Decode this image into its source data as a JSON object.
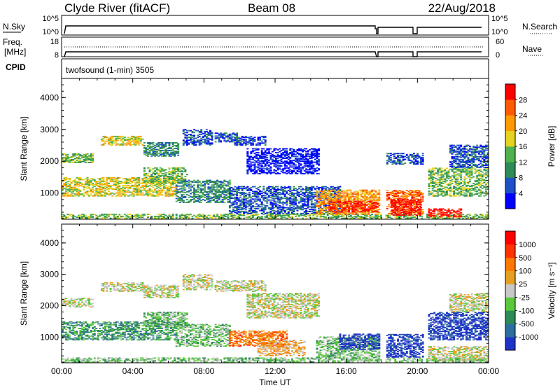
{
  "header": {
    "station": "Clyde River (fitACF)",
    "beam": "Beam 08",
    "date": "22/Aug/2018"
  },
  "top_panels": {
    "nsky_label": "N.Sky",
    "nsky_ticks": [
      "10^5",
      "10^0"
    ],
    "nsearch_label": "N.Search",
    "nsearch_ticks": [
      "10^5",
      "10^0"
    ],
    "freq_label_1": "Freq.",
    "freq_label_2": "[MHz]",
    "freq_ticks": [
      "18",
      "8"
    ],
    "nave_label": "Nave",
    "nave_ticks": [
      "60",
      "0"
    ],
    "cpid_label": "CPID",
    "cpid_text": "twofsound (1-min) 3505"
  },
  "chart_data": [
    {
      "type": "heatmap",
      "name": "power",
      "xlabel": "",
      "ylabel": "Slant Range [km]",
      "x_ticks": [
        "00:00",
        "04:00",
        "08:00",
        "12:00",
        "16:00",
        "20:00",
        "00:00"
      ],
      "y_ticks": [
        1000,
        2000,
        3000,
        4000
      ],
      "xlim_hours": [
        0,
        24
      ],
      "ylim_km": [
        180,
        4600
      ],
      "data_gaps_hours": [
        [
          17.9,
          18.15
        ],
        [
          20.3,
          20.5
        ]
      ],
      "colorbar": {
        "label": "Power [dB]",
        "ticks": [
          "4",
          "8",
          "12",
          "16",
          "20",
          "24",
          "28"
        ],
        "colors": [
          "#0000ff",
          "#1e50c8",
          "#2e8b57",
          "#4fb24f",
          "#e6d220",
          "#ff9b00",
          "#ff5a00",
          "#ff0000"
        ]
      },
      "regions": [
        {
          "t": [
            0.0,
            24.0
          ],
          "r": [
            200,
            330
          ],
          "level": 3
        },
        {
          "t": [
            0.0,
            1.8
          ],
          "r": [
            1950,
            2250
          ],
          "level": 3
        },
        {
          "t": [
            2.2,
            4.6
          ],
          "r": [
            2500,
            2800
          ],
          "level": 4
        },
        {
          "t": [
            4.6,
            6.5
          ],
          "r": [
            2150,
            2600
          ],
          "level": 2
        },
        {
          "t": [
            6.8,
            8.4
          ],
          "r": [
            2500,
            3000
          ],
          "level": 1
        },
        {
          "t": [
            8.6,
            9.8
          ],
          "r": [
            2600,
            2900
          ],
          "level": 1
        },
        {
          "t": [
            9.7,
            11.4
          ],
          "r": [
            2500,
            2800
          ],
          "level": 1
        },
        {
          "t": [
            0.0,
            6.4
          ],
          "r": [
            900,
            1500
          ],
          "level": 4
        },
        {
          "t": [
            4.6,
            7.0
          ],
          "r": [
            1300,
            1800
          ],
          "level": 3
        },
        {
          "t": [
            6.4,
            9.4
          ],
          "r": [
            700,
            1400
          ],
          "level": 2
        },
        {
          "t": [
            9.4,
            15.6
          ],
          "r": [
            350,
            1200
          ],
          "level": 1
        },
        {
          "t": [
            10.4,
            14.4
          ],
          "r": [
            1600,
            2400
          ],
          "level": 0
        },
        {
          "t": [
            14.3,
            17.9
          ],
          "r": [
            330,
            1100
          ],
          "level": 5
        },
        {
          "t": [
            15.0,
            17.8
          ],
          "r": [
            400,
            750
          ],
          "level": 7
        },
        {
          "t": [
            18.15,
            20.3
          ],
          "r": [
            350,
            1100
          ],
          "level": 6
        },
        {
          "t": [
            18.5,
            20.2
          ],
          "r": [
            300,
            800
          ],
          "level": 7
        },
        {
          "t": [
            18.15,
            20.3
          ],
          "r": [
            1900,
            2250
          ],
          "level": 1
        },
        {
          "t": [
            20.5,
            24.0
          ],
          "r": [
            900,
            1800
          ],
          "level": 3
        },
        {
          "t": [
            20.5,
            22.5
          ],
          "r": [
            250,
            500
          ],
          "level": 7
        },
        {
          "t": [
            21.8,
            24.0
          ],
          "r": [
            1800,
            2500
          ],
          "level": 1
        }
      ]
    },
    {
      "type": "heatmap",
      "name": "velocity",
      "xlabel": "Time UT",
      "ylabel": "Slant Range [km]",
      "x_ticks": [
        "00:00",
        "04:00",
        "08:00",
        "12:00",
        "16:00",
        "20:00",
        "00:00"
      ],
      "y_ticks": [
        1000,
        2000,
        3000,
        4000
      ],
      "xlim_hours": [
        0,
        24
      ],
      "ylim_km": [
        180,
        4600
      ],
      "data_gaps_hours": [
        [
          17.9,
          18.15
        ],
        [
          20.3,
          20.5
        ]
      ],
      "colorbar": {
        "label": "Velocity [m s⁻¹]",
        "ticks": [
          "1000",
          "500",
          "100",
          "25",
          "-25",
          "-100",
          "-500",
          "-1000"
        ],
        "colors": [
          "#1e32c8",
          "#2d6ea0",
          "#2e8b57",
          "#5ac83c",
          "#c8c8c8",
          "#e6a020",
          "#ff7800",
          "#ff3200",
          "#ff0000"
        ]
      },
      "regions": [
        {
          "t": [
            0.0,
            24.0
          ],
          "r": [
            200,
            330
          ],
          "level": 3
        },
        {
          "t": [
            0.0,
            1.8
          ],
          "r": [
            1950,
            2250
          ],
          "level": 4
        },
        {
          "t": [
            2.2,
            4.6
          ],
          "r": [
            2450,
            2750
          ],
          "level": 4
        },
        {
          "t": [
            4.6,
            6.5
          ],
          "r": [
            2250,
            2650
          ],
          "level": 4
        },
        {
          "t": [
            6.8,
            8.4
          ],
          "r": [
            2500,
            3000
          ],
          "level": 4
        },
        {
          "t": [
            8.6,
            11.4
          ],
          "r": [
            2450,
            2800
          ],
          "level": 4
        },
        {
          "t": [
            10.4,
            14.4
          ],
          "r": [
            1600,
            2400
          ],
          "level": 4
        },
        {
          "t": [
            0.0,
            6.4
          ],
          "r": [
            900,
            1500
          ],
          "level": 2
        },
        {
          "t": [
            4.6,
            7.0
          ],
          "r": [
            1300,
            1800
          ],
          "level": 3
        },
        {
          "t": [
            6.4,
            9.4
          ],
          "r": [
            700,
            1400
          ],
          "level": 3
        },
        {
          "t": [
            9.4,
            12.6
          ],
          "r": [
            700,
            1200
          ],
          "level": 6
        },
        {
          "t": [
            11.0,
            13.6
          ],
          "r": [
            400,
            900
          ],
          "level": 5
        },
        {
          "t": [
            14.3,
            17.9
          ],
          "r": [
            330,
            1000
          ],
          "level": 3
        },
        {
          "t": [
            15.6,
            17.9
          ],
          "r": [
            600,
            1100
          ],
          "level": 0
        },
        {
          "t": [
            18.15,
            20.3
          ],
          "r": [
            350,
            1100
          ],
          "level": 0
        },
        {
          "t": [
            20.5,
            24.0
          ],
          "r": [
            900,
            1800
          ],
          "level": 0
        },
        {
          "t": [
            21.8,
            24.0
          ],
          "r": [
            1800,
            2400
          ],
          "level": 4
        },
        {
          "t": [
            20.5,
            24.0
          ],
          "r": [
            230,
            700
          ],
          "level": 4
        }
      ]
    }
  ]
}
